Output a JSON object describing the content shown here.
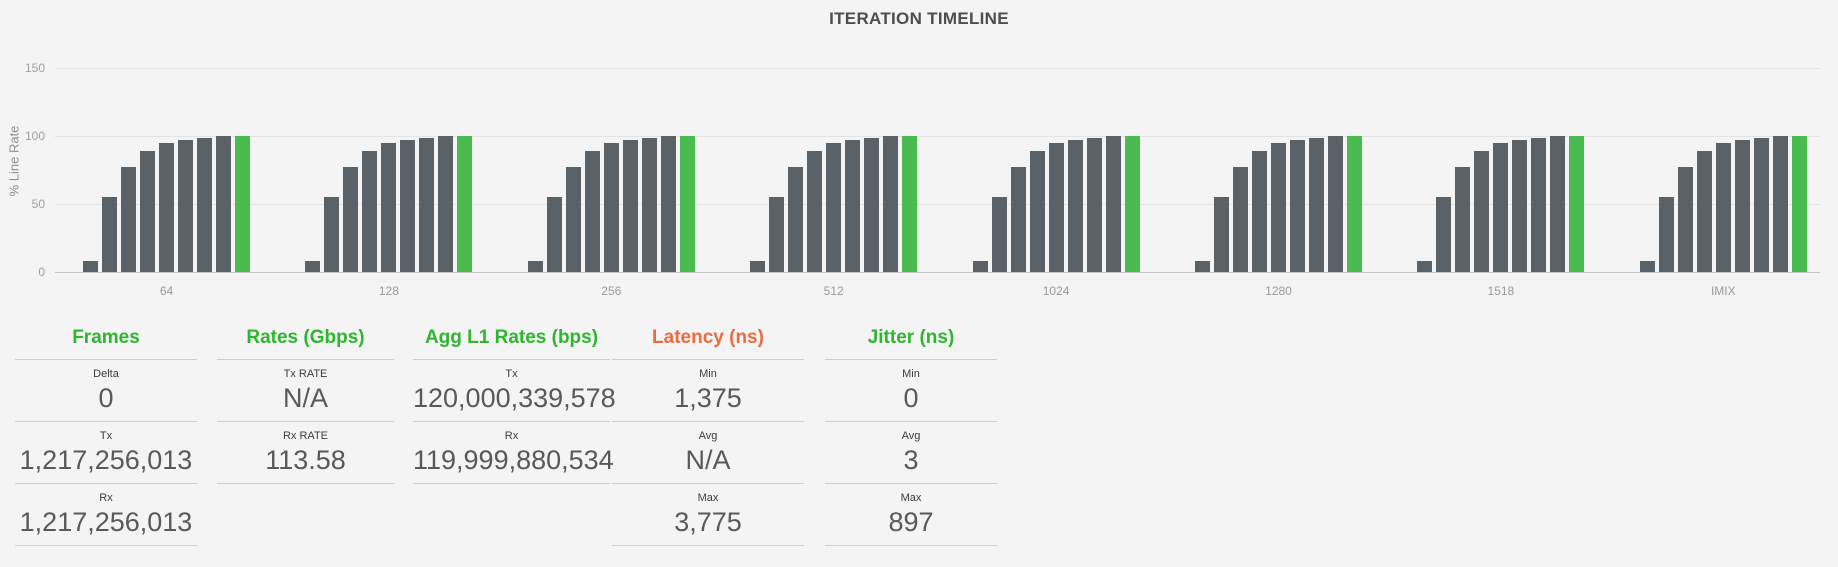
{
  "title": "ITERATION TIMELINE",
  "colors": {
    "background": "#f4f4f4",
    "bar_gray": "#5a6167",
    "bar_green": "#4abb4e",
    "header_green": "#2fb52f",
    "header_orange": "#ed6b3f"
  },
  "chart_data": {
    "type": "bar",
    "title": "ITERATION TIMELINE",
    "xlabel": "",
    "ylabel": "% Line Rate",
    "yticks": [
      0,
      50,
      100,
      150
    ],
    "ylim": [
      0,
      165
    ],
    "grid": true,
    "legend": "none",
    "note": "Each frame-size category shows 9 iteration bars of % line rate; final iteration bar is highlighted green.",
    "categories": [
      "64",
      "128",
      "256",
      "512",
      "1024",
      "1280",
      "1518",
      "IMIX"
    ],
    "values": [
      [
        8,
        55,
        77,
        89,
        95,
        97,
        99,
        100,
        100
      ],
      [
        8,
        55,
        77,
        89,
        95,
        97,
        99,
        100,
        100
      ],
      [
        8,
        55,
        77,
        89,
        95,
        97,
        99,
        100,
        100
      ],
      [
        8,
        55,
        77,
        89,
        95,
        97,
        99,
        100,
        100
      ],
      [
        8,
        55,
        77,
        89,
        95,
        97,
        99,
        100,
        100
      ],
      [
        8,
        55,
        77,
        89,
        95,
        97,
        99,
        100,
        100
      ],
      [
        8,
        55,
        77,
        89,
        95,
        97,
        99,
        100,
        100
      ],
      [
        8,
        55,
        77,
        89,
        95,
        97,
        99,
        100,
        100
      ]
    ],
    "highlight_last_bar": true
  },
  "stats": {
    "columns": [
      {
        "header": "Frames",
        "header_color": "#2fb52f",
        "rows": [
          {
            "label": "Delta",
            "value": "0"
          },
          {
            "label": "Tx",
            "value": "1,217,256,013"
          },
          {
            "label": "Rx",
            "value": "1,217,256,013"
          }
        ]
      },
      {
        "header": "Rates (Gbps)",
        "header_color": "#2fb52f",
        "rows": [
          {
            "label": "Tx RATE",
            "value": "N/A"
          },
          {
            "label": "Rx RATE",
            "value": "113.58"
          }
        ]
      },
      {
        "header": "Agg L1 Rates (bps)",
        "header_color": "#2fb52f",
        "rows": [
          {
            "label": "Tx",
            "value": "120,000,339,578"
          },
          {
            "label": "Rx",
            "value": "119,999,880,534"
          }
        ]
      },
      {
        "header": "Latency (ns)",
        "header_color": "#ed6b3f",
        "rows": [
          {
            "label": "Min",
            "value": "1,375"
          },
          {
            "label": "Avg",
            "value": "N/A"
          },
          {
            "label": "Max",
            "value": "3,775"
          }
        ]
      },
      {
        "header": "Jitter (ns)",
        "header_color": "#2fb52f",
        "rows": [
          {
            "label": "Min",
            "value": "0"
          },
          {
            "label": "Avg",
            "value": "3"
          },
          {
            "label": "Max",
            "value": "897"
          }
        ]
      }
    ]
  }
}
